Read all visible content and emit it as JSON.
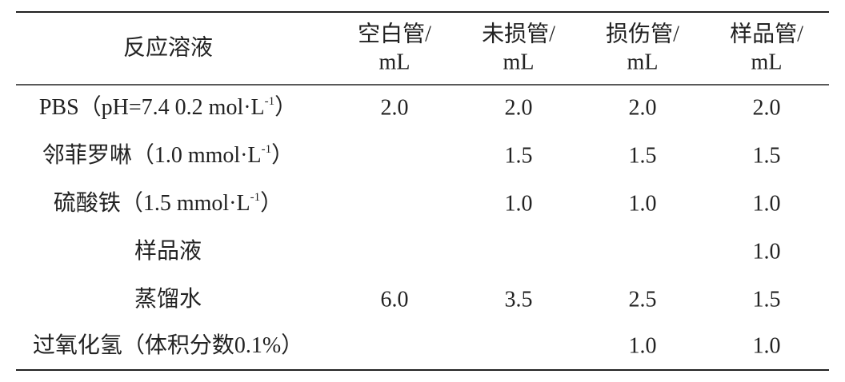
{
  "table": {
    "header": [
      [
        "反应溶液"
      ],
      [
        "空白管/",
        "mL"
      ],
      [
        "未损管/",
        "mL"
      ],
      [
        "损伤管/",
        "mL"
      ],
      [
        "样品管/",
        "mL"
      ]
    ],
    "rows": [
      [
        {
          "text": "PBS（pH=7.4 0.2 mol·L",
          "sup": "-1",
          "tail": "）"
        },
        "2.0",
        "2.0",
        "2.0",
        "2.0"
      ],
      [
        {
          "text": "邻菲罗啉（1.0 mmol·L",
          "sup": "-1",
          "tail": "）"
        },
        null,
        "1.5",
        "1.5",
        "1.5"
      ],
      [
        {
          "text": "硫酸铁（1.5 mmol·L",
          "sup": "-1",
          "tail": "）"
        },
        null,
        "1.0",
        "1.0",
        "1.0"
      ],
      [
        {
          "text": "样品液"
        },
        null,
        null,
        null,
        "1.0"
      ],
      [
        {
          "text": "蒸馏水"
        },
        "6.0",
        "3.5",
        "2.5",
        "1.5"
      ],
      [
        {
          "text": "过氧化氢（体积分数0.1%）"
        },
        null,
        null,
        "1.0",
        "1.0"
      ]
    ]
  }
}
